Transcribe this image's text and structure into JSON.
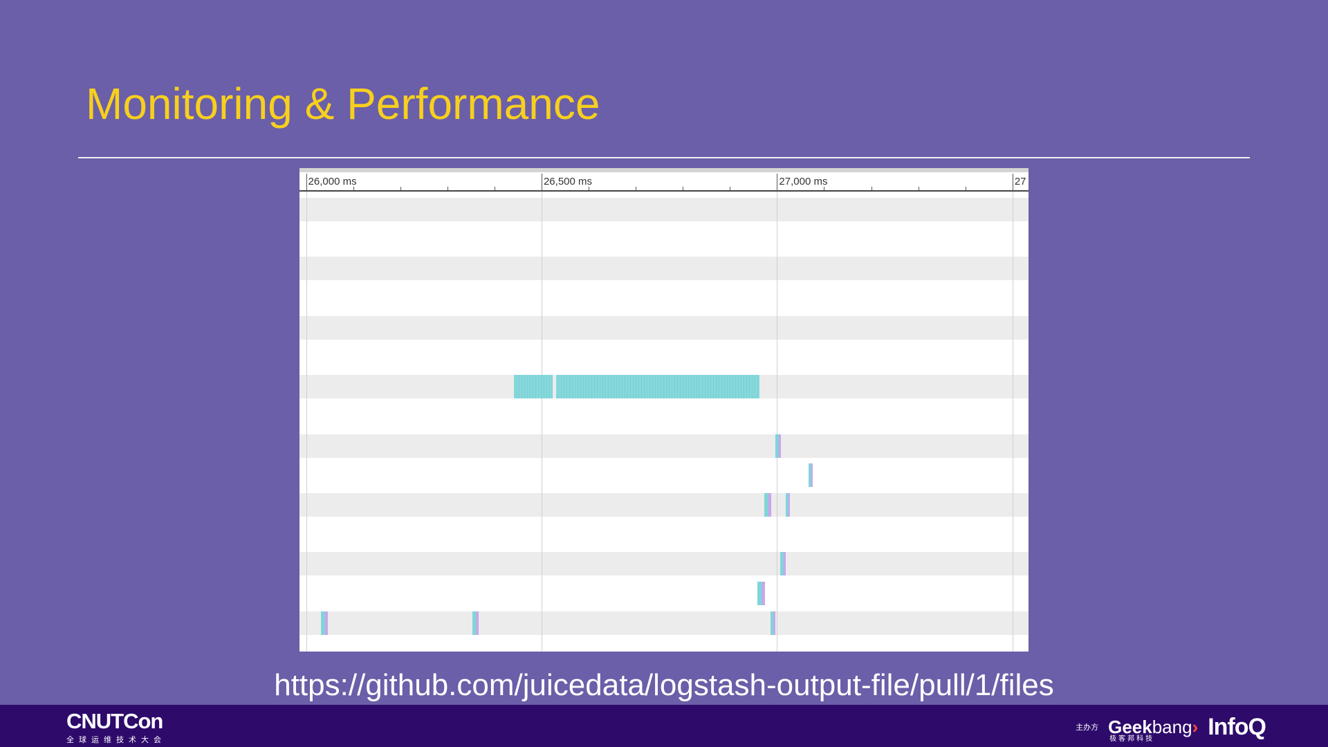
{
  "slide": {
    "title": "Monitoring & Performance",
    "url": "https://github.com/juicedata/logstash-output-file/pull/1/files",
    "colors": {
      "background": "#6a5fa8",
      "title": "#f7cf1e",
      "footer": "#2e0a6b",
      "bar": "#86d8db",
      "bar_accent": "#c5a8ea"
    }
  },
  "timeline": {
    "ruler_labels": [
      "26,000 ms",
      "26,500 ms",
      "27,000 ms",
      "27"
    ],
    "range_ms": [
      25986,
      27534
    ],
    "rows": 15,
    "bars": [
      {
        "row": 6,
        "start_ms": 26442,
        "end_ms": 26523,
        "kind": "block"
      },
      {
        "row": 6,
        "start_ms": 26531,
        "end_ms": 26962,
        "kind": "block"
      },
      {
        "row": 8,
        "start_ms": 26997,
        "end_ms": 27008,
        "kind": "mark"
      },
      {
        "row": 9,
        "start_ms": 27067,
        "end_ms": 27075,
        "kind": "mark"
      },
      {
        "row": 10,
        "start_ms": 26973,
        "end_ms": 26988,
        "kind": "mark"
      },
      {
        "row": 10,
        "start_ms": 27018,
        "end_ms": 27025,
        "kind": "mark"
      },
      {
        "row": 12,
        "start_ms": 27007,
        "end_ms": 27018,
        "kind": "mark"
      },
      {
        "row": 13,
        "start_ms": 26958,
        "end_ms": 26975,
        "kind": "mark"
      },
      {
        "row": 14,
        "start_ms": 26031,
        "end_ms": 26046,
        "kind": "mark"
      },
      {
        "row": 14,
        "start_ms": 26353,
        "end_ms": 26366,
        "kind": "mark"
      },
      {
        "row": 14,
        "start_ms": 26986,
        "end_ms": 26996,
        "kind": "mark"
      }
    ]
  },
  "footer": {
    "logo": "CNUTCon",
    "logo_sub": "全球运维技术大会",
    "host_label": "主办方",
    "sponsor_geek": "Geek",
    "sponsor_bang": "bang",
    "sponsor_geek_sub": "极客邦科技",
    "sponsor_infoq": "InfoQ"
  }
}
